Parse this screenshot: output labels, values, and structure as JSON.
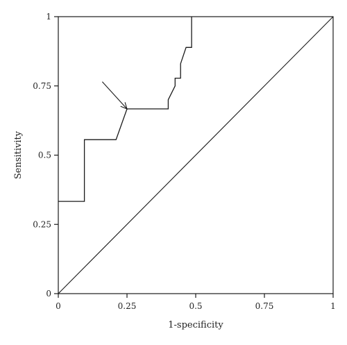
{
  "chart_data": {
    "type": "line",
    "title": "",
    "xlabel": "1-specificity",
    "ylabel": "Sensitivity",
    "xlim": [
      0,
      1
    ],
    "ylim": [
      0,
      1
    ],
    "xticks": [
      0,
      0.25,
      0.5,
      0.75,
      1
    ],
    "xtick_labels": [
      "0",
      "0.25",
      "0.5",
      "0.75",
      "1"
    ],
    "yticks": [
      0,
      0.25,
      0.5,
      0.75,
      1
    ],
    "ytick_labels": [
      "0",
      "0.25",
      "0.5",
      "0.75",
      "1"
    ],
    "grid": false,
    "series": [
      {
        "x": [
          0,
          0.095,
          0.095,
          0.21,
          0.25,
          0.4,
          0.4,
          0.425,
          0.425,
          0.445,
          0.445,
          0.465,
          0.465,
          0.485,
          0.485
        ],
        "y": [
          0.333,
          0.333,
          0.556,
          0.556,
          0.667,
          0.667,
          0.7,
          0.75,
          0.778,
          0.778,
          0.83,
          0.889,
          0.889,
          0.889,
          1.0
        ]
      },
      {
        "x": [
          0,
          1
        ],
        "y": [
          0,
          1
        ],
        "style": "reference-diagonal"
      }
    ],
    "annotations": [
      {
        "type": "arrow",
        "from": [
          0.16,
          0.765
        ],
        "to": [
          0.25,
          0.667
        ]
      }
    ]
  }
}
